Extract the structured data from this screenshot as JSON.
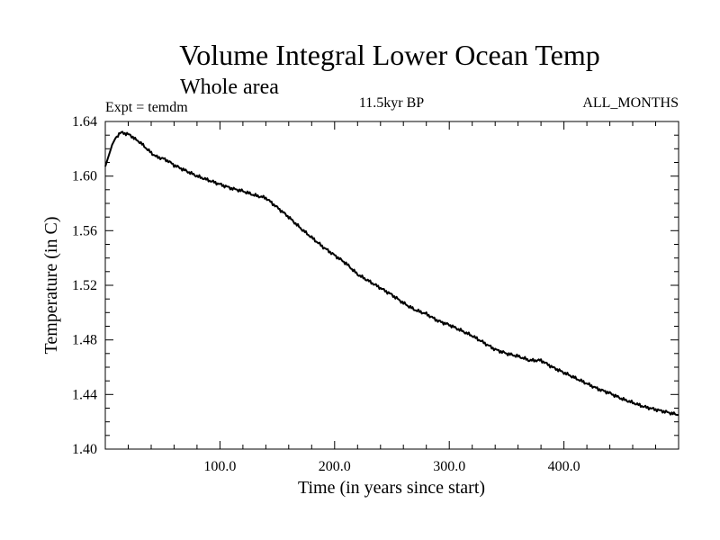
{
  "chart_data": {
    "type": "line",
    "title": "Volume Integral Lower Ocean Temp",
    "subtitle": "Whole area",
    "left_label": "Expt = temdm",
    "center_label": "11.5kyr BP",
    "right_label": "ALL_MONTHS",
    "xlabel": "Time (in years since start)",
    "ylabel": "Temperature (in C)",
    "xlim": [
      0,
      500
    ],
    "ylim": [
      1.4,
      1.64
    ],
    "xticks": [
      100,
      200,
      300,
      400
    ],
    "xtick_labels": [
      "100.0",
      "200.0",
      "300.0",
      "400.0"
    ],
    "yticks": [
      1.4,
      1.44,
      1.48,
      1.52,
      1.56,
      1.6,
      1.64
    ],
    "ytick_labels": [
      "1.40",
      "1.44",
      "1.48",
      "1.52",
      "1.56",
      "1.60",
      "1.64"
    ],
    "series": [
      {
        "name": "temdm",
        "color": "#000000",
        "x": [
          0,
          3,
          6,
          9,
          12,
          15,
          18,
          22,
          26,
          30,
          35,
          40,
          45,
          50,
          55,
          60,
          70,
          80,
          90,
          100,
          110,
          120,
          130,
          140,
          150,
          160,
          170,
          180,
          190,
          200,
          210,
          220,
          230,
          240,
          250,
          260,
          270,
          280,
          290,
          300,
          310,
          320,
          330,
          340,
          350,
          360,
          370,
          380,
          390,
          400,
          410,
          420,
          430,
          440,
          450,
          460,
          470,
          480,
          490,
          500
        ],
        "values": [
          1.607,
          1.615,
          1.623,
          1.628,
          1.631,
          1.632,
          1.631,
          1.63,
          1.627,
          1.625,
          1.621,
          1.617,
          1.614,
          1.613,
          1.611,
          1.608,
          1.604,
          1.6,
          1.597,
          1.594,
          1.591,
          1.589,
          1.586,
          1.584,
          1.577,
          1.57,
          1.562,
          1.555,
          1.548,
          1.542,
          1.536,
          1.528,
          1.523,
          1.518,
          1.513,
          1.507,
          1.502,
          1.499,
          1.494,
          1.491,
          1.487,
          1.483,
          1.478,
          1.473,
          1.47,
          1.468,
          1.465,
          1.465,
          1.46,
          1.456,
          1.452,
          1.448,
          1.444,
          1.441,
          1.437,
          1.434,
          1.431,
          1.429,
          1.427,
          1.425
        ]
      }
    ]
  }
}
